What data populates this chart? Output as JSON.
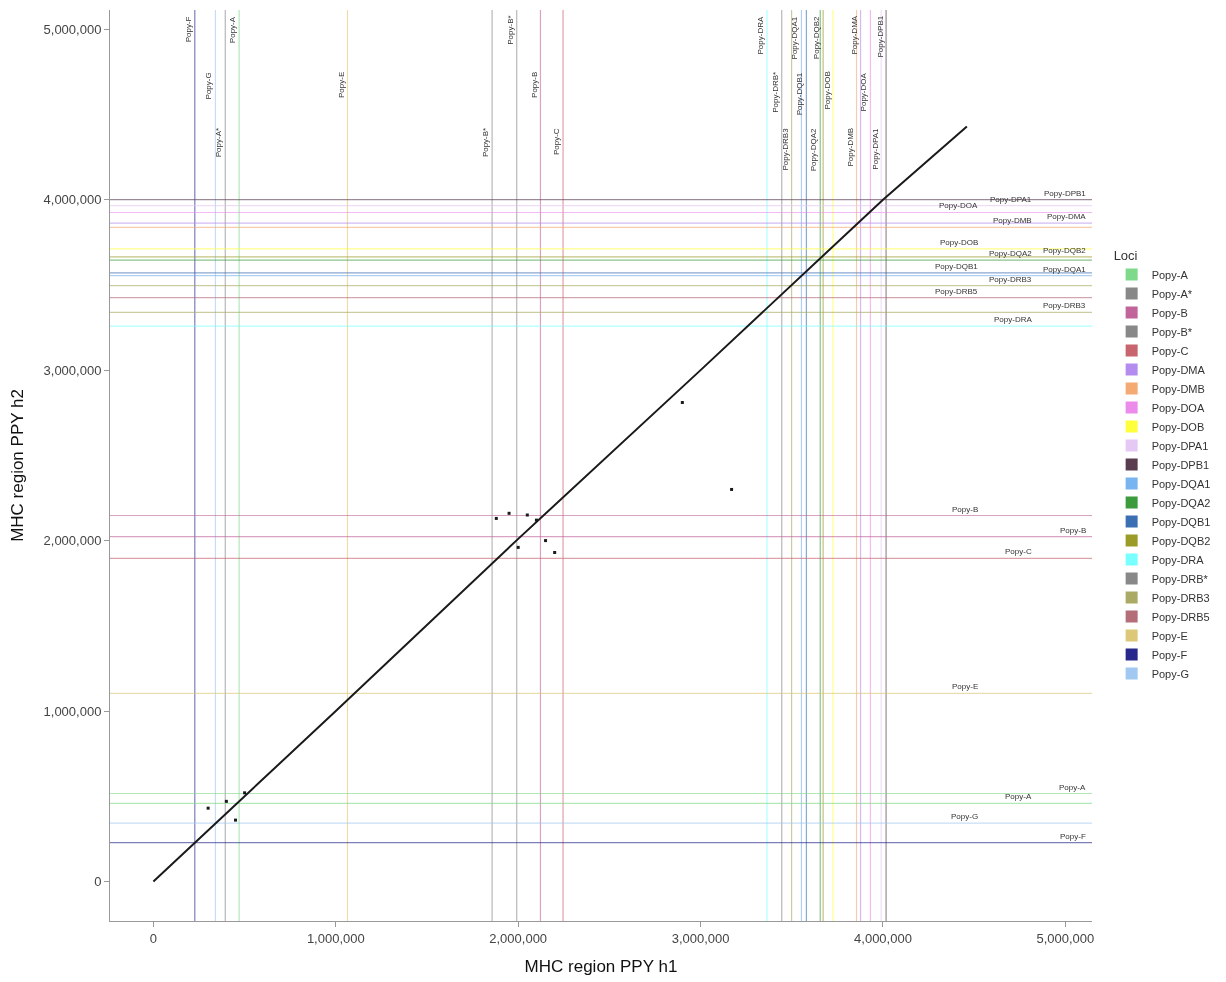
{
  "chart_data": {
    "type": "line",
    "xlabel": "MHC region PPY h1",
    "ylabel": "MHC region PPY h2",
    "legend_title": "Loci",
    "legend": "right",
    "grid": false,
    "xlim": [
      -238000,
      5146000
    ],
    "ylim": [
      -232000,
      5113000
    ],
    "xticks": [
      {
        "value": 0,
        "label": "0"
      },
      {
        "value": 1000000,
        "label": "1,000,000"
      },
      {
        "value": 2000000,
        "label": "2,000,000"
      },
      {
        "value": 3000000,
        "label": "3,000,000"
      },
      {
        "value": 4000000,
        "label": "4,000,000"
      },
      {
        "value": 5000000,
        "label": "5,000,000"
      }
    ],
    "yticks": [
      {
        "value": 0,
        "label": "0"
      },
      {
        "value": 1000000,
        "label": "1,000,000"
      },
      {
        "value": 2000000,
        "label": "2,000,000"
      },
      {
        "value": 3000000,
        "label": "3,000,000"
      },
      {
        "value": 4000000,
        "label": "4,000,000"
      },
      {
        "value": 5000000,
        "label": "5,000,000"
      }
    ],
    "series": [
      {
        "color": "#1a1a1a",
        "x": [
          0,
          1000000,
          2000000,
          3000000,
          4000000,
          4460000
        ],
        "values": [
          0,
          1000000,
          2010000,
          3000000,
          4000000,
          4430000
        ]
      },
      {
        "type": "scatter",
        "marker": "square",
        "color": "#1a1a1a",
        "x": [
          1880000,
          1950000,
          2000000,
          2100000,
          2150000,
          2200000,
          2050000,
          2900000,
          3170000,
          400000,
          300000,
          450000,
          500000
        ],
        "values": [
          2130000,
          2160000,
          1960000,
          2120000,
          2000000,
          1930000,
          2150000,
          2810000,
          2300000,
          470000,
          430000,
          360000,
          520000
        ]
      },
      {
        "type": "scatter",
        "name": "Popy-A",
        "color": "#7fd98a"
      },
      {
        "type": "scatter",
        "name": "Popy-A*",
        "color": "#888888"
      },
      {
        "type": "scatter",
        "name": "Popy-B",
        "color": "#c0649a"
      },
      {
        "type": "scatter",
        "name": "Popy-B*",
        "color": "#888888"
      },
      {
        "type": "scatter",
        "name": "Popy-C",
        "color": "#c8646e"
      },
      {
        "type": "scatter",
        "name": "Popy-DMA",
        "color": "#b48cf0"
      },
      {
        "type": "scatter",
        "name": "Popy-DMB",
        "color": "#f5aa73"
      },
      {
        "type": "scatter",
        "name": "Popy-DOA",
        "color": "#eb8ceb"
      },
      {
        "type": "scatter",
        "name": "Popy-DOB",
        "color": "#ffff3c"
      },
      {
        "type": "scatter",
        "name": "Popy-DPA1",
        "color": "#e6c8f5"
      },
      {
        "type": "scatter",
        "name": "Popy-DPB1",
        "color": "#5a3c50"
      },
      {
        "type": "scatter",
        "name": "Popy-DQA1",
        "color": "#78b4f0"
      },
      {
        "type": "scatter",
        "name": "Popy-DQA2",
        "color": "#3c9b3c"
      },
      {
        "type": "scatter",
        "name": "Popy-DQB1",
        "color": "#3c6eb4"
      },
      {
        "type": "scatter",
        "name": "Popy-DQB2",
        "color": "#9b9b28"
      },
      {
        "type": "scatter",
        "name": "Popy-DRA",
        "color": "#78ffff"
      },
      {
        "type": "scatter",
        "name": "Popy-DRB*",
        "color": "#888888"
      },
      {
        "type": "scatter",
        "name": "Popy-DRB3",
        "color": "#aaaa64"
      },
      {
        "type": "scatter",
        "name": "Popy-DRB5",
        "color": "#b46e78"
      },
      {
        "type": "scatter",
        "name": "Popy-E",
        "color": "#dcc878"
      },
      {
        "type": "scatter",
        "name": "Popy-F",
        "color": "#28288c"
      },
      {
        "type": "scatter",
        "name": "Popy-G",
        "color": "#a0c8f0"
      }
    ],
    "ref_lines": [
      {
        "axis": "x",
        "value": 227000,
        "label": "Popy-F",
        "color": "#28288c"
      },
      {
        "axis": "x",
        "value": 340000,
        "label": "Popy-G",
        "color": "#a0c8f0"
      },
      {
        "axis": "x",
        "value": 394000,
        "label": "Popy-A*",
        "color": "#888888"
      },
      {
        "axis": "x",
        "value": 470000,
        "label": "Popy-A",
        "color": "#7fd98a"
      },
      {
        "axis": "x",
        "value": 1064000,
        "label": "Popy-E",
        "color": "#dcc878"
      },
      {
        "axis": "x",
        "value": 1857000,
        "label": "Popy-B*",
        "color": "#888888"
      },
      {
        "axis": "x",
        "value": 1992000,
        "label": "Popy-B*",
        "color": "#888888"
      },
      {
        "axis": "x",
        "value": 2122000,
        "label": "Popy-B",
        "color": "#c0649a"
      },
      {
        "axis": "x",
        "value": 2246000,
        "label": "Popy-C",
        "color": "#c8646e"
      },
      {
        "axis": "x",
        "value": 3364000,
        "label": "Popy-DRA",
        "color": "#78ffff"
      },
      {
        "axis": "x",
        "value": 3445000,
        "label": "Popy-DRB*",
        "color": "#888888"
      },
      {
        "axis": "x",
        "value": 3499000,
        "label": "Popy-DRB3",
        "color": "#aaaa64"
      },
      {
        "axis": "x",
        "value": 3553000,
        "label": "Popy-DQA1",
        "color": "#78b4f0"
      },
      {
        "axis": "x",
        "value": 3580000,
        "label": "Popy-DQB1",
        "color": "#3c6eb4"
      },
      {
        "axis": "x",
        "value": 3656000,
        "label": "Popy-DQA2",
        "color": "#3c9b3c"
      },
      {
        "axis": "x",
        "value": 3672000,
        "label": "Popy-DQB2",
        "color": "#9b9b28"
      },
      {
        "axis": "x",
        "value": 3726000,
        "label": "Popy-DOB",
        "color": "#ffff3c"
      },
      {
        "axis": "x",
        "value": 3855000,
        "label": "Popy-DMB",
        "color": "#f5aa73"
      },
      {
        "axis": "x",
        "value": 3877000,
        "label": "Popy-DMA",
        "color": "#b48cf0"
      },
      {
        "axis": "x",
        "value": 3931000,
        "label": "Popy-DOA",
        "color": "#eb8ceb"
      },
      {
        "axis": "x",
        "value": 3990000,
        "label": "Popy-DPA1",
        "color": "#e6c8f5"
      },
      {
        "axis": "x",
        "value": 4017000,
        "label": "Popy-DPB1",
        "color": "#5a3c50"
      },
      {
        "axis": "y",
        "value": 4000000,
        "label": "Popy-DPB1",
        "color": "#5a3c50"
      },
      {
        "axis": "y",
        "value": 3965000,
        "label": "Popy-DPA1",
        "color": "#e6c8f5"
      },
      {
        "axis": "y",
        "value": 3925000,
        "label": "Popy-DOA",
        "color": "#eb8ceb"
      },
      {
        "axis": "y",
        "value": 3863000,
        "label": "Popy-DMA",
        "color": "#b48cf0"
      },
      {
        "axis": "y",
        "value": 3838000,
        "label": "Popy-DMB",
        "color": "#f5aa73"
      },
      {
        "axis": "y",
        "value": 3712000,
        "label": "Popy-DOB",
        "color": "#ffff3c"
      },
      {
        "axis": "y",
        "value": 3664000,
        "label": "Popy-DQB2",
        "color": "#9b9b28"
      },
      {
        "axis": "y",
        "value": 3645000,
        "label": "Popy-DQA2",
        "color": "#3c9b3c"
      },
      {
        "axis": "y",
        "value": 3571000,
        "label": "Popy-DQB1",
        "color": "#3c6eb4"
      },
      {
        "axis": "y",
        "value": 3554000,
        "label": "Popy-DQA1",
        "color": "#78b4f0"
      },
      {
        "axis": "y",
        "value": 3496000,
        "label": "Popy-DRB3",
        "color": "#aaaa64"
      },
      {
        "axis": "y",
        "value": 3426000,
        "label": "Popy-DRB5",
        "color": "#b46e78"
      },
      {
        "axis": "y",
        "value": 3339000,
        "label": "Popy-DRB3",
        "color": "#aaaa64"
      },
      {
        "axis": "y",
        "value": 3258000,
        "label": "Popy-DRA",
        "color": "#78ffff"
      },
      {
        "axis": "y",
        "value": 2147000,
        "label": "Popy-B",
        "color": "#c0649a"
      },
      {
        "axis": "y",
        "value": 2023000,
        "label": "Popy-B",
        "color": "#c0649a"
      },
      {
        "axis": "y",
        "value": 1896000,
        "label": "Popy-C",
        "color": "#c8646e"
      },
      {
        "axis": "y",
        "value": 1103000,
        "label": "Popy-E",
        "color": "#dcc878"
      },
      {
        "axis": "y",
        "value": 516000,
        "label": "Popy-A",
        "color": "#7fd98a"
      },
      {
        "axis": "y",
        "value": 458000,
        "label": "Popy-A",
        "color": "#7fd98a"
      },
      {
        "axis": "y",
        "value": 342000,
        "label": "Popy-G",
        "color": "#a0c8f0"
      },
      {
        "axis": "y",
        "value": 228000,
        "label": "Popy-F",
        "color": "#28288c"
      }
    ]
  }
}
